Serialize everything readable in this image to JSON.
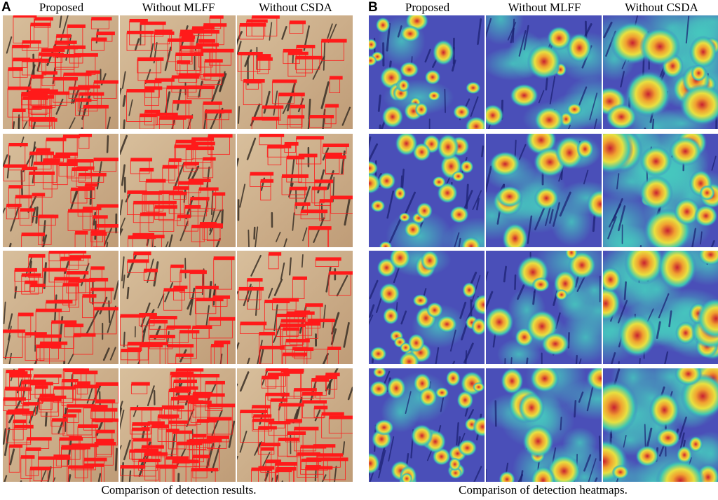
{
  "panels": [
    {
      "letter": "A",
      "columns": [
        "Proposed",
        "Without MLFF",
        "Without CSDA"
      ],
      "caption": "Comparison of detection results.",
      "kind": "detection"
    },
    {
      "letter": "B",
      "columns": [
        "Proposed",
        "Without MLFF",
        "Without CSDA"
      ],
      "caption": "Comparison of detection heatmaps.",
      "kind": "heatmap"
    }
  ],
  "colors": {
    "skin": "#cdb08e",
    "hair": "#3a3026",
    "box": "#ff1a1a",
    "heat_background": "#4a4fb8",
    "heat_hot": "#d8303a"
  },
  "grid": {
    "rows": 4,
    "cols_per_panel": 3
  }
}
